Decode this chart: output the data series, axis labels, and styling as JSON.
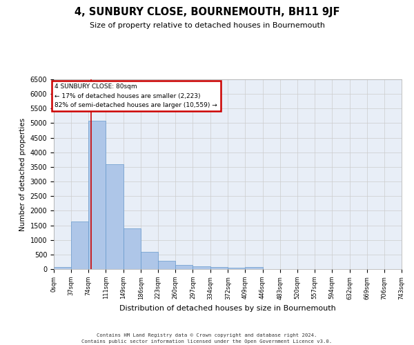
{
  "title": "4, SUNBURY CLOSE, BOURNEMOUTH, BH11 9JF",
  "subtitle": "Size of property relative to detached houses in Bournemouth",
  "xlabel": "Distribution of detached houses by size in Bournemouth",
  "ylabel": "Number of detached properties",
  "bin_edges": [
    0,
    37,
    74,
    111,
    149,
    186,
    223,
    260,
    297,
    334,
    372,
    409,
    446,
    483,
    520,
    557,
    594,
    632,
    669,
    706,
    743
  ],
  "bin_counts": [
    75,
    1625,
    5075,
    3600,
    1400,
    580,
    295,
    135,
    100,
    80,
    55,
    75,
    0,
    0,
    0,
    0,
    0,
    0,
    0,
    0
  ],
  "bar_color": "#aec6e8",
  "bar_edge_color": "#6699cc",
  "property_line_x": 80,
  "property_line_color": "#cc0000",
  "annotation_text": "4 SUNBURY CLOSE: 80sqm\n← 17% of detached houses are smaller (2,223)\n82% of semi-detached houses are larger (10,559) →",
  "annotation_box_color": "#cc0000",
  "ylim": [
    0,
    6500
  ],
  "yticks": [
    0,
    500,
    1000,
    1500,
    2000,
    2500,
    3000,
    3500,
    4000,
    4500,
    5000,
    5500,
    6000,
    6500
  ],
  "grid_color": "#cccccc",
  "background_color": "#e8eef7",
  "footer_line1": "Contains HM Land Registry data © Crown copyright and database right 2024.",
  "footer_line2": "Contains public sector information licensed under the Open Government Licence v3.0.",
  "tick_labels": [
    "0sqm",
    "37sqm",
    "74sqm",
    "111sqm",
    "149sqm",
    "186sqm",
    "223sqm",
    "260sqm",
    "297sqm",
    "334sqm",
    "372sqm",
    "409sqm",
    "446sqm",
    "483sqm",
    "520sqm",
    "557sqm",
    "594sqm",
    "632sqm",
    "669sqm",
    "706sqm",
    "743sqm"
  ]
}
